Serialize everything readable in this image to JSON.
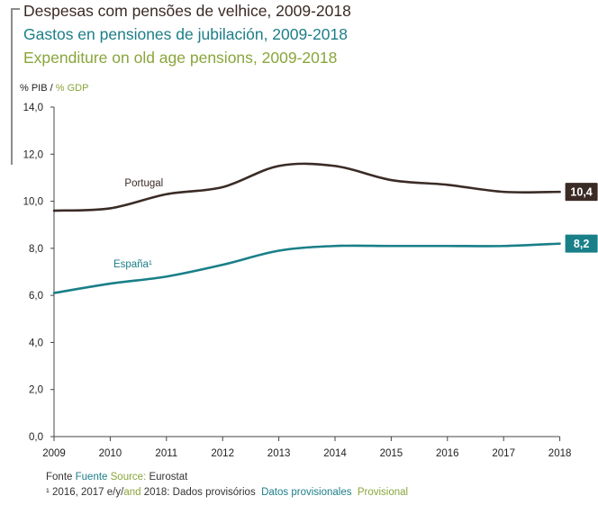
{
  "titles": {
    "pt": "Despesas com pensões de velhice, 2009-2018",
    "es": "Gastos en pensiones de jubilación, 2009-2018",
    "en": "Expenditure on old age pensions, 2009-2018"
  },
  "colors": {
    "portugal": "#3b2b26",
    "spain": "#197f88",
    "english": "#8aa53b",
    "axis": "#444444"
  },
  "chart_data": {
    "type": "line",
    "ylabel_pt_es": "% PIB / ",
    "ylabel_en": "% GDP",
    "ylim": [
      0,
      14
    ],
    "yticks": [
      "0,0",
      "2,0",
      "4,0",
      "6,0",
      "8,0",
      "10,0",
      "12,0",
      "14,0"
    ],
    "x": [
      "2009",
      "2010",
      "2011",
      "2012",
      "2013",
      "2014",
      "2015",
      "2016",
      "2017",
      "2018"
    ],
    "series": [
      {
        "name": "Portugal",
        "key": "portugal",
        "label_year_index": 1.6,
        "values": [
          9.6,
          9.7,
          10.3,
          10.6,
          11.5,
          11.5,
          10.9,
          10.7,
          10.4,
          10.4
        ],
        "end_label": "10,4"
      },
      {
        "name": "España¹",
        "key": "spain",
        "label_year_index": 1.4,
        "values": [
          6.1,
          6.5,
          6.8,
          7.3,
          7.9,
          8.1,
          8.1,
          8.1,
          8.1,
          8.2
        ],
        "end_label": "8,2"
      }
    ]
  },
  "footer": {
    "source_pt": "Fonte",
    "source_es": "Fuente",
    "source_en": "Source:",
    "source_name": "Eurostat",
    "note_pt": "¹ 2016, 2017 e/y/",
    "note_and": "and",
    "note_pt2": " 2018: Dados provisórios",
    "note_es": "Datos provisionales",
    "note_en": "Provisional"
  }
}
